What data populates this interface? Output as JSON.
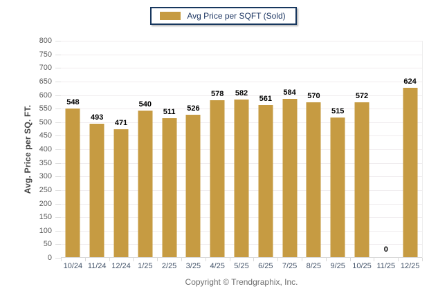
{
  "legend": {
    "label": "Avg Price per SQFT (Sold)",
    "swatch_color": "#C69B42",
    "border_color": "#17375E"
  },
  "footer": {
    "copyright": "Copyright © Trendgraphix, Inc."
  },
  "chart_data": {
    "type": "bar",
    "title": "Avg Price per SQFT (Sold)",
    "categories": [
      "10/24",
      "11/24",
      "12/24",
      "1/25",
      "2/25",
      "3/25",
      "4/25",
      "5/25",
      "6/25",
      "7/25",
      "8/25",
      "9/25",
      "10/25",
      "11/25",
      "12/25"
    ],
    "values": [
      548,
      493,
      471,
      540,
      511,
      526,
      578,
      582,
      561,
      584,
      570,
      515,
      572,
      0,
      624
    ],
    "xlabel": "",
    "ylabel": "Avg. Price per SQ. FT.",
    "ylim": [
      0,
      800
    ],
    "y_ticks": [
      0,
      50,
      100,
      150,
      200,
      250,
      300,
      350,
      400,
      450,
      500,
      550,
      600,
      650,
      700,
      750,
      800
    ],
    "grid": true,
    "legend_position": "top-center",
    "bar_color": "#C69B42",
    "value_labels_shown": true
  },
  "colors": {
    "bar": "#C69B42",
    "gridline": "#F0ECEE",
    "axis_line": "#D9D9D9",
    "y_tick_text": "#5A5A5A",
    "x_tick_text": "#44546A",
    "value_label_text": "#000000",
    "legend_text": "#1F3864",
    "copyright_text": "#6E6E6E"
  }
}
